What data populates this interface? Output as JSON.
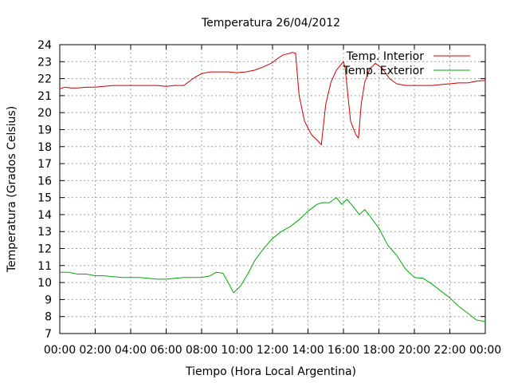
{
  "chart_data": {
    "type": "line",
    "title": "Temperatura 26/04/2012",
    "xlabel": "Tiempo (Hora Local Argentina)",
    "ylabel": "Temperatura (Grados Celsius)",
    "xlim": [
      0,
      24
    ],
    "ylim": [
      7,
      24
    ],
    "x_tick_labels": [
      "00:00",
      "02:00",
      "04:00",
      "06:00",
      "08:00",
      "10:00",
      "12:00",
      "14:00",
      "16:00",
      "18:00",
      "20:00",
      "22:00",
      "00:00"
    ],
    "y_ticks": [
      7,
      8,
      9,
      10,
      11,
      12,
      13,
      14,
      15,
      16,
      17,
      18,
      19,
      20,
      21,
      22,
      23,
      24
    ],
    "grid": true,
    "legend_position": "top-right",
    "series": [
      {
        "name": "Temp. Interior",
        "color": "#cc0000",
        "x": [
          0,
          0.3,
          0.6,
          1,
          1.5,
          2,
          2.5,
          3,
          3.5,
          4,
          4.5,
          5,
          5.5,
          6,
          6.5,
          7,
          7.5,
          8,
          8.5,
          9,
          9.5,
          10,
          10.5,
          11,
          11.5,
          12,
          12.3,
          12.6,
          13,
          13.1,
          13.3,
          13.5,
          13.8,
          14.2,
          14.6,
          14.75,
          15,
          15.3,
          15.6,
          16,
          16.1,
          16.4,
          16.7,
          16.85,
          17,
          17.2,
          17.5,
          17.8,
          18.2,
          18.6,
          19,
          19.5,
          20,
          20.5,
          21,
          21.5,
          22,
          22.5,
          23,
          23.5,
          24
        ],
        "y": [
          21.4,
          21.5,
          21.45,
          21.45,
          21.5,
          21.5,
          21.55,
          21.6,
          21.6,
          21.6,
          21.6,
          21.6,
          21.6,
          21.55,
          21.6,
          21.6,
          22.0,
          22.3,
          22.4,
          22.4,
          22.4,
          22.35,
          22.4,
          22.5,
          22.7,
          22.95,
          23.2,
          23.4,
          23.5,
          23.55,
          23.5,
          21.0,
          19.5,
          18.7,
          18.3,
          18.1,
          20.5,
          21.8,
          22.5,
          23.0,
          22.6,
          19.5,
          18.7,
          18.5,
          20.5,
          21.8,
          22.6,
          22.9,
          22.6,
          22.0,
          21.7,
          21.6,
          21.6,
          21.6,
          21.6,
          21.65,
          21.7,
          21.75,
          21.75,
          21.85,
          21.9
        ]
      },
      {
        "name": "Temp. Exterior",
        "color": "#00aa00",
        "x": [
          0,
          0.5,
          1,
          1.5,
          2,
          2.5,
          3,
          3.5,
          4,
          4.5,
          5,
          5.5,
          6,
          6.5,
          7,
          7.5,
          8,
          8.5,
          8.8,
          9.2,
          9.5,
          9.8,
          10.2,
          10.6,
          11,
          11.5,
          12,
          12.5,
          13,
          13.5,
          14,
          14.5,
          14.8,
          15.2,
          15.6,
          15.9,
          16.2,
          16.6,
          16.9,
          17.2,
          17.5,
          18,
          18.5,
          19,
          19.5,
          20,
          20.5,
          21,
          21.5,
          22,
          22.5,
          23,
          23.5,
          24
        ],
        "y": [
          10.6,
          10.6,
          10.5,
          10.5,
          10.4,
          10.4,
          10.35,
          10.3,
          10.3,
          10.3,
          10.25,
          10.2,
          10.2,
          10.25,
          10.3,
          10.3,
          10.3,
          10.4,
          10.6,
          10.55,
          10.0,
          9.4,
          9.8,
          10.5,
          11.3,
          12.0,
          12.6,
          13.0,
          13.3,
          13.7,
          14.2,
          14.6,
          14.7,
          14.7,
          15.0,
          14.6,
          14.9,
          14.4,
          14.0,
          14.3,
          13.9,
          13.2,
          12.2,
          11.6,
          10.8,
          10.3,
          10.25,
          9.9,
          9.5,
          9.1,
          8.6,
          8.2,
          7.8,
          7.7
        ]
      }
    ]
  }
}
